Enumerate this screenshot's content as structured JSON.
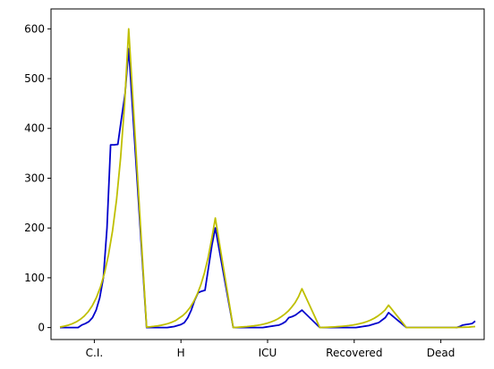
{
  "chart_data": {
    "type": "line",
    "title": "",
    "xlabel": "",
    "ylabel": "",
    "ylim": [
      -24,
      640
    ],
    "yticks": [
      0,
      100,
      200,
      300,
      400,
      500,
      600
    ],
    "categories": [
      "C.I.",
      "H",
      "ICU",
      "Recovered",
      "Dead"
    ],
    "grid": false,
    "legend": "none",
    "series": [
      {
        "color": "#0000cc",
        "values": [
          [
            0,
            0,
            0,
            0,
            0,
            0,
            5,
            8,
            12,
            20,
            35,
            60,
            100,
            200,
            367,
            367,
            368,
            420,
            470,
            560
          ],
          [
            0,
            0,
            0,
            0,
            0,
            0,
            0,
            1,
            2,
            4,
            6,
            10,
            20,
            35,
            55,
            70,
            73,
            75,
            120,
            165,
            200
          ],
          [
            0,
            0,
            0,
            0,
            0,
            0,
            0,
            0,
            0,
            0,
            1,
            2,
            3,
            4,
            5,
            8,
            12,
            20,
            22,
            25,
            30,
            35
          ],
          [
            0,
            0,
            0,
            0,
            0,
            0,
            0,
            0,
            0,
            0,
            0,
            0,
            1,
            2,
            3,
            4,
            6,
            8,
            10,
            15,
            20,
            30
          ],
          [
            0,
            0,
            0,
            0,
            0,
            0,
            0,
            0,
            0,
            0,
            0,
            0,
            0,
            0,
            0,
            0,
            0,
            2,
            5,
            6,
            7,
            8,
            13
          ]
        ]
      },
      {
        "color": "#bfbf00",
        "values": [
          [
            1,
            2.6,
            4.7,
            7.5,
            11.3,
            16.3,
            23,
            32,
            44,
            60,
            81,
            109,
            146,
            194,
            257,
            341,
            450,
            600
          ],
          [
            1,
            1.6,
            2.4,
            3.4,
            4.6,
            6.2,
            8.2,
            10.8,
            14,
            19,
            24,
            31,
            40,
            52,
            67,
            86,
            110,
            140,
            178,
            220
          ],
          [
            0,
            0.5,
            1,
            1.5,
            2,
            2.7,
            3.5,
            4.5,
            5.7,
            7.2,
            9,
            11.3,
            14,
            17.5,
            22,
            27,
            33,
            41,
            50,
            62,
            78
          ],
          [
            0,
            0.3,
            0.6,
            1,
            1.4,
            1.9,
            2.5,
            3.2,
            4,
            5,
            6.3,
            7.8,
            9.7,
            12,
            15,
            18.5,
            23,
            28.5,
            35,
            45
          ],
          [
            0,
            0,
            0,
            0,
            0,
            0,
            0,
            0,
            0,
            0,
            0,
            0,
            0,
            0,
            0,
            0,
            0.2,
            0.4,
            0.6,
            0.8,
            1,
            1.5,
            2
          ]
        ]
      }
    ]
  }
}
